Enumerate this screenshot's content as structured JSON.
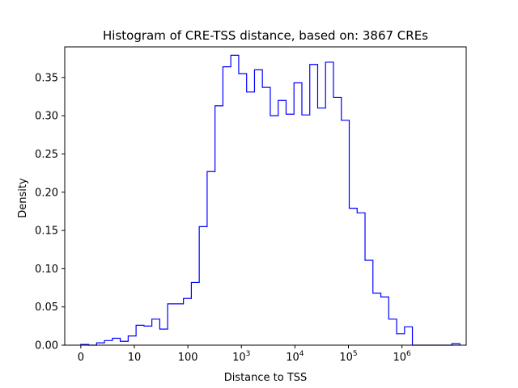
{
  "chart_data": {
    "type": "histogram-step",
    "title": "Histogram of CRE-TSS distance, based on: 3867 CREs",
    "xlabel": "Distance to TSS",
    "ylabel": "Density",
    "ylim": [
      0,
      0.39
    ],
    "xlim": [
      -0.3,
      7.2
    ],
    "x_scale": "log10(distance + 1)",
    "line_color": "#0000ff",
    "grid": false,
    "legend": "none",
    "x_ticks": [
      {
        "value": 0,
        "label": "0"
      },
      {
        "value": 1,
        "label": "10"
      },
      {
        "value": 2,
        "label": "100"
      },
      {
        "value": 3,
        "label": "10",
        "sup": "3"
      },
      {
        "value": 4,
        "label": "10",
        "sup": "4"
      },
      {
        "value": 5,
        "label": "10",
        "sup": "5"
      },
      {
        "value": 6,
        "label": "10",
        "sup": "6"
      }
    ],
    "y_ticks": [
      {
        "value": 0.0,
        "label": "0.00"
      },
      {
        "value": 0.05,
        "label": "0.05"
      },
      {
        "value": 0.1,
        "label": "0.10"
      },
      {
        "value": 0.15,
        "label": "0.15"
      },
      {
        "value": 0.2,
        "label": "0.20"
      },
      {
        "value": 0.25,
        "label": "0.25"
      },
      {
        "value": 0.3,
        "label": "0.30"
      },
      {
        "value": 0.35,
        "label": "0.35"
      }
    ],
    "bin_edges": [
      0,
      0.1475,
      0.295,
      0.4425,
      0.59,
      0.7375,
      0.885,
      1.0325,
      1.18,
      1.3275,
      1.475,
      1.6225,
      1.77,
      1.9175,
      2.065,
      2.2125,
      2.36,
      2.5075,
      2.655,
      2.8025,
      2.95,
      3.0975,
      3.245,
      3.3925,
      3.54,
      3.6875,
      3.835,
      3.9825,
      4.13,
      4.2775,
      4.425,
      4.5725,
      4.72,
      4.8675,
      5.015,
      5.1625,
      5.31,
      5.4575,
      5.605,
      5.7525,
      5.9,
      6.0475,
      6.195,
      6.3425,
      6.49,
      6.6375,
      6.785,
      6.9325,
      7.08
    ],
    "density": [
      0.001,
      0.0,
      0.003,
      0.006,
      0.009,
      0.005,
      0.012,
      0.026,
      0.025,
      0.034,
      0.021,
      0.054,
      0.054,
      0.061,
      0.082,
      0.155,
      0.227,
      0.313,
      0.364,
      0.379,
      0.355,
      0.331,
      0.36,
      0.337,
      0.3,
      0.32,
      0.302,
      0.343,
      0.301,
      0.367,
      0.31,
      0.37,
      0.324,
      0.294,
      0.179,
      0.173,
      0.111,
      0.068,
      0.063,
      0.034,
      0.015,
      0.024,
      0.0,
      0.0,
      0.0,
      0.0,
      0.0,
      0.002
    ]
  }
}
